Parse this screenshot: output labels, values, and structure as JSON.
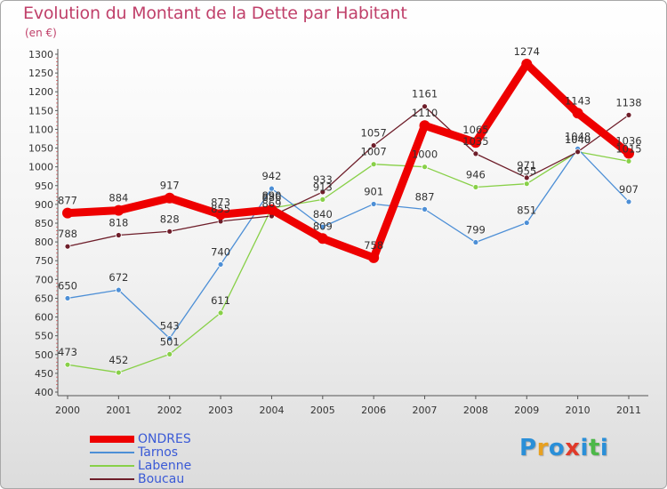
{
  "header": {
    "title": "Evolution du Montant de la Dette par Habitant",
    "subtitle": "(en €)"
  },
  "chart_data": {
    "type": "line",
    "title": "Evolution du Montant de la Dette par Habitant",
    "subtitle": "(en €)",
    "xlabel": "",
    "ylabel": "",
    "categories": [
      "2000",
      "2001",
      "2002",
      "2003",
      "2004",
      "2005",
      "2006",
      "2007",
      "2008",
      "2009",
      "2010",
      "2011"
    ],
    "ylim": [
      400,
      1300
    ],
    "yticks": [
      400,
      450,
      500,
      550,
      600,
      650,
      700,
      750,
      800,
      850,
      900,
      950,
      1000,
      1050,
      1100,
      1150,
      1200,
      1250,
      1300
    ],
    "grid": false,
    "legend_position": "bottom-left",
    "series": [
      {
        "name": "ONDRES",
        "color": "#ee0000",
        "values": [
          877,
          884,
          917,
          873,
          886,
          809,
          758,
          1110,
          1065,
          1274,
          1143,
          1036
        ]
      },
      {
        "name": "Tarnos",
        "color": "#4d8fd6",
        "values": [
          650,
          672,
          543,
          740,
          942,
          840,
          901,
          887,
          799,
          851,
          1048,
          907
        ]
      },
      {
        "name": "Labenne",
        "color": "#88d048",
        "values": [
          473,
          452,
          501,
          611,
          890,
          913,
          1007,
          1000,
          946,
          955,
          1040,
          1015
        ]
      },
      {
        "name": "Boucau",
        "color": "#6e1e2a",
        "values": [
          788,
          818,
          828,
          855,
          869,
          933,
          1057,
          1161,
          1035,
          971,
          1040,
          1138
        ]
      }
    ]
  },
  "logo": {
    "letters": [
      "P",
      "r",
      "o",
      "x",
      "i",
      "t",
      "i"
    ],
    "colors": [
      "#2a8fd8",
      "#e8a020",
      "#2a8fd8",
      "#e03a2a",
      "#2a8fd8",
      "#4cb848",
      "#2a8fd8"
    ]
  }
}
